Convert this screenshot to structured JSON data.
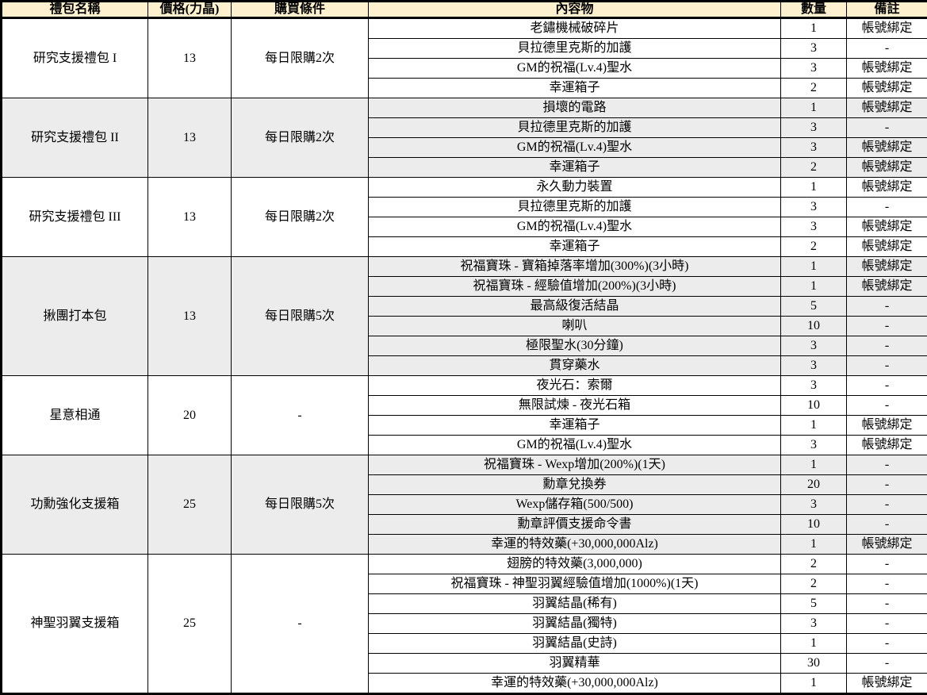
{
  "colors": {
    "header_bg": "#FDF0CF",
    "shaded_row_bg": "#ECECEC",
    "border": "#000000",
    "text": "#000000"
  },
  "table": {
    "headers": [
      "禮包名稱",
      "價格(力晶)",
      "購買條件",
      "內容物",
      "數量",
      "備註"
    ],
    "packages": [
      {
        "name": "研究支援禮包 I",
        "price": "13",
        "condition": "每日限購2次",
        "items": [
          {
            "content": "老鏽機械破碎片",
            "qty": "1",
            "note": "帳號綁定"
          },
          {
            "content": "貝拉德里克斯的加護",
            "qty": "3",
            "note": "-"
          },
          {
            "content": "GM的祝福(Lv.4)聖水",
            "qty": "3",
            "note": "帳號綁定"
          },
          {
            "content": "幸運箱子",
            "qty": "2",
            "note": "帳號綁定"
          }
        ]
      },
      {
        "name": "研究支援禮包 II",
        "price": "13",
        "condition": "每日限購2次",
        "items": [
          {
            "content": "損壞的電路",
            "qty": "1",
            "note": "帳號綁定"
          },
          {
            "content": "貝拉德里克斯的加護",
            "qty": "3",
            "note": "-"
          },
          {
            "content": "GM的祝福(Lv.4)聖水",
            "qty": "3",
            "note": "帳號綁定"
          },
          {
            "content": "幸運箱子",
            "qty": "2",
            "note": "帳號綁定"
          }
        ]
      },
      {
        "name": "研究支援禮包 III",
        "price": "13",
        "condition": "每日限購2次",
        "items": [
          {
            "content": "永久動力裝置",
            "qty": "1",
            "note": "帳號綁定"
          },
          {
            "content": "貝拉德里克斯的加護",
            "qty": "3",
            "note": "-"
          },
          {
            "content": "GM的祝福(Lv.4)聖水",
            "qty": "3",
            "note": "帳號綁定"
          },
          {
            "content": "幸運箱子",
            "qty": "2",
            "note": "帳號綁定"
          }
        ]
      },
      {
        "name": "揪團打本包",
        "price": "13",
        "condition": "每日限購5次",
        "items": [
          {
            "content": "祝福寶珠 - 寶箱掉落率增加(300%)(3小時)",
            "qty": "1",
            "note": "帳號綁定"
          },
          {
            "content": "祝福寶珠 - 經驗值增加(200%)(3小時)",
            "qty": "1",
            "note": "帳號綁定"
          },
          {
            "content": "最高級復活結晶",
            "qty": "5",
            "note": "-"
          },
          {
            "content": "喇叭",
            "qty": "10",
            "note": "-"
          },
          {
            "content": "極限聖水(30分鐘)",
            "qty": "3",
            "note": "-"
          },
          {
            "content": "貫穿藥水",
            "qty": "3",
            "note": "-"
          }
        ]
      },
      {
        "name": "星意相通",
        "price": "20",
        "condition": "-",
        "items": [
          {
            "content": "夜光石：索爾",
            "qty": "3",
            "note": "-"
          },
          {
            "content": "無限試煉 - 夜光石箱",
            "qty": "10",
            "note": "-"
          },
          {
            "content": "幸運箱子",
            "qty": "1",
            "note": "帳號綁定"
          },
          {
            "content": "GM的祝福(Lv.4)聖水",
            "qty": "3",
            "note": "帳號綁定"
          }
        ]
      },
      {
        "name": "功勳強化支援箱",
        "price": "25",
        "condition": "每日限購5次",
        "items": [
          {
            "content": "祝福寶珠 - Wexp增加(200%)(1天)",
            "qty": "1",
            "note": "-"
          },
          {
            "content": "勳章兌換券",
            "qty": "20",
            "note": "-"
          },
          {
            "content": "Wexp儲存箱(500/500)",
            "qty": "3",
            "note": "-"
          },
          {
            "content": "勳章評價支援命令書",
            "qty": "10",
            "note": "-"
          },
          {
            "content": "幸運的特效藥(+30,000,000Alz)",
            "qty": "1",
            "note": "帳號綁定"
          }
        ]
      },
      {
        "name": "神聖羽翼支援箱",
        "price": "25",
        "condition": "-",
        "items": [
          {
            "content": "翅膀的特效藥(3,000,000)",
            "qty": "2",
            "note": "-"
          },
          {
            "content": "祝福寶珠 - 神聖羽翼經驗值增加(1000%)(1天)",
            "qty": "2",
            "note": "-"
          },
          {
            "content": "羽翼結晶(稀有)",
            "qty": "5",
            "note": "-"
          },
          {
            "content": "羽翼結晶(獨特)",
            "qty": "3",
            "note": "-"
          },
          {
            "content": "羽翼結晶(史詩)",
            "qty": "1",
            "note": "-"
          },
          {
            "content": "羽翼精華",
            "qty": "30",
            "note": "-"
          },
          {
            "content": "幸運的特效藥(+30,000,000Alz)",
            "qty": "1",
            "note": "帳號綁定"
          }
        ]
      }
    ]
  }
}
